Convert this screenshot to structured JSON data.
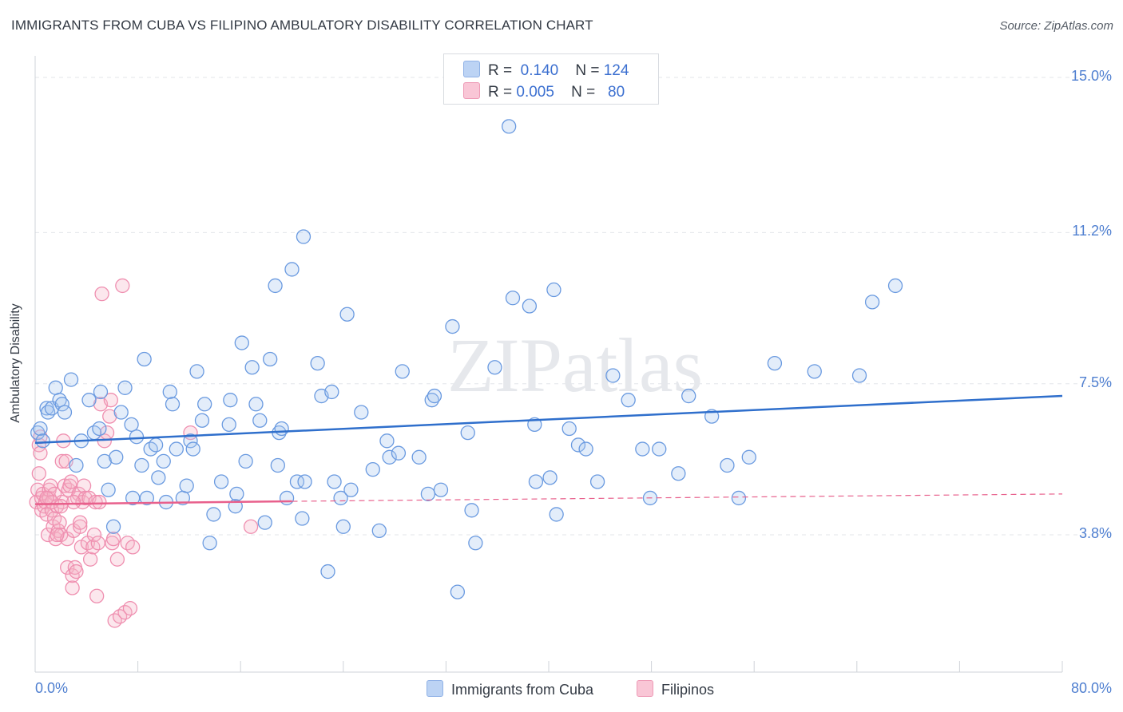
{
  "title": "IMMIGRANTS FROM CUBA VS FILIPINO AMBULATORY DISABILITY CORRELATION CHART",
  "source": "Source: ZipAtlas.com",
  "watermark": "ZIPatlas",
  "legend": {
    "rows": [
      {
        "r_label": "R =",
        "r_value": "0.140",
        "n_label": "N =",
        "n_value": "124"
      },
      {
        "r_label": "R =",
        "r_value": "0.005",
        "n_label": "N =",
        "n_value": "80"
      }
    ]
  },
  "bottom_legend": {
    "series1": "Immigrants from Cuba",
    "series2": "Filipinos"
  },
  "colors": {
    "blue": "#6a9ae0",
    "blue_line": "#2f6fcc",
    "pink": "#ef8fb0",
    "pink_line": "#e8608c",
    "grid": "#e3e6ea"
  },
  "chart_data": {
    "type": "scatter",
    "title": "IMMIGRANTS FROM CUBA VS FILIPINO AMBULATORY DISABILITY CORRELATION CHART",
    "xlabel": "",
    "ylabel": "Ambulatory Disability",
    "xlim": [
      0,
      80
    ],
    "ylim": [
      0,
      15.5
    ],
    "y_ticks": [
      3.8,
      7.5,
      11.2,
      15.0
    ],
    "y_tick_labels": [
      "3.8%",
      "7.5%",
      "11.2%",
      "15.0%"
    ],
    "x_tick_labels": [
      "0.0%",
      "80.0%"
    ],
    "series": [
      {
        "name": "Immigrants from Cuba",
        "r": 0.14,
        "n": 124,
        "trend": {
          "x": [
            0,
            80
          ],
          "y": [
            6.05,
            7.2
          ],
          "style": "solid"
        },
        "points": [
          [
            0.2,
            6.3
          ],
          [
            0.4,
            6.4
          ],
          [
            0.6,
            6.1
          ],
          [
            0.9,
            6.9
          ],
          [
            1.0,
            6.8
          ],
          [
            1.3,
            6.9
          ],
          [
            1.6,
            7.4
          ],
          [
            1.9,
            7.1
          ],
          [
            2.1,
            7.0
          ],
          [
            2.3,
            6.8
          ],
          [
            2.8,
            7.6
          ],
          [
            3.2,
            5.5
          ],
          [
            3.6,
            6.1
          ],
          [
            4.2,
            7.1
          ],
          [
            4.6,
            6.3
          ],
          [
            5.0,
            6.4
          ],
          [
            5.1,
            7.3
          ],
          [
            5.4,
            5.6
          ],
          [
            5.7,
            4.9
          ],
          [
            6.1,
            4.0
          ],
          [
            6.3,
            5.7
          ],
          [
            6.7,
            6.8
          ],
          [
            7.0,
            7.4
          ],
          [
            7.6,
            4.7
          ],
          [
            7.5,
            6.5
          ],
          [
            7.9,
            6.2
          ],
          [
            8.3,
            5.5
          ],
          [
            8.5,
            8.1
          ],
          [
            8.7,
            4.7
          ],
          [
            9.0,
            5.9
          ],
          [
            9.4,
            6.0
          ],
          [
            9.6,
            5.2
          ],
          [
            10.0,
            5.6
          ],
          [
            10.2,
            4.6
          ],
          [
            10.5,
            7.3
          ],
          [
            10.7,
            7.0
          ],
          [
            11.0,
            5.9
          ],
          [
            11.5,
            4.7
          ],
          [
            11.8,
            5.0
          ],
          [
            12.1,
            6.1
          ],
          [
            12.3,
            5.9
          ],
          [
            12.6,
            7.8
          ],
          [
            13.0,
            6.6
          ],
          [
            13.2,
            7.0
          ],
          [
            13.6,
            3.6
          ],
          [
            13.9,
            4.3
          ],
          [
            14.5,
            5.1
          ],
          [
            15.1,
            6.5
          ],
          [
            15.2,
            7.1
          ],
          [
            15.6,
            4.5
          ],
          [
            15.7,
            4.8
          ],
          [
            16.1,
            8.5
          ],
          [
            16.4,
            5.6
          ],
          [
            16.9,
            7.9
          ],
          [
            17.2,
            7.0
          ],
          [
            17.5,
            6.6
          ],
          [
            17.9,
            4.1
          ],
          [
            18.3,
            8.1
          ],
          [
            18.7,
            9.9
          ],
          [
            18.9,
            5.5
          ],
          [
            19.0,
            6.3
          ],
          [
            19.2,
            6.4
          ],
          [
            19.6,
            4.7
          ],
          [
            20.0,
            10.3
          ],
          [
            20.4,
            5.1
          ],
          [
            20.8,
            4.2
          ],
          [
            20.9,
            11.1
          ],
          [
            21.0,
            5.1
          ],
          [
            22.0,
            8.0
          ],
          [
            22.3,
            7.2
          ],
          [
            22.8,
            2.9
          ],
          [
            23.1,
            7.3
          ],
          [
            23.3,
            5.1
          ],
          [
            23.8,
            4.7
          ],
          [
            24.0,
            4.0
          ],
          [
            24.3,
            9.2
          ],
          [
            24.6,
            4.9
          ],
          [
            25.4,
            6.8
          ],
          [
            26.3,
            5.4
          ],
          [
            26.8,
            3.9
          ],
          [
            27.4,
            6.1
          ],
          [
            27.6,
            5.7
          ],
          [
            28.3,
            5.8
          ],
          [
            28.6,
            7.8
          ],
          [
            29.9,
            5.7
          ],
          [
            30.6,
            4.8
          ],
          [
            30.9,
            7.1
          ],
          [
            31.1,
            7.2
          ],
          [
            31.6,
            4.9
          ],
          [
            32.5,
            8.9
          ],
          [
            32.9,
            2.4
          ],
          [
            33.7,
            6.3
          ],
          [
            34.0,
            4.4
          ],
          [
            34.3,
            3.6
          ],
          [
            35.8,
            7.9
          ],
          [
            36.9,
            13.8
          ],
          [
            37.2,
            9.6
          ],
          [
            38.5,
            9.4
          ],
          [
            38.9,
            6.5
          ],
          [
            39.0,
            5.1
          ],
          [
            40.1,
            5.2
          ],
          [
            40.6,
            4.3
          ],
          [
            40.4,
            9.8
          ],
          [
            41.6,
            6.4
          ],
          [
            42.3,
            6.0
          ],
          [
            42.9,
            5.9
          ],
          [
            43.8,
            5.1
          ],
          [
            45.0,
            7.7
          ],
          [
            46.2,
            7.1
          ],
          [
            47.3,
            5.9
          ],
          [
            47.9,
            4.7
          ],
          [
            48.6,
            5.9
          ],
          [
            50.1,
            5.3
          ],
          [
            50.9,
            7.2
          ],
          [
            52.7,
            6.7
          ],
          [
            53.9,
            5.5
          ],
          [
            54.8,
            4.7
          ],
          [
            55.6,
            5.7
          ],
          [
            57.6,
            8.0
          ],
          [
            60.7,
            7.8
          ],
          [
            64.2,
            7.7
          ],
          [
            65.2,
            9.5
          ],
          [
            67.0,
            9.9
          ]
        ]
      },
      {
        "name": "Filipinos",
        "r": 0.005,
        "n": 80,
        "trend": {
          "x": [
            0,
            20
          ],
          "y": [
            4.55,
            4.62
          ],
          "style": "solid",
          "dashed_extension": {
            "x": [
              20,
              80
            ],
            "y": [
              4.62,
              4.8
            ]
          }
        },
        "points": [
          [
            0.1,
            4.6
          ],
          [
            0.2,
            4.9
          ],
          [
            0.3,
            5.3
          ],
          [
            0.3,
            6.0
          ],
          [
            0.4,
            6.2
          ],
          [
            0.4,
            5.8
          ],
          [
            0.5,
            4.7
          ],
          [
            0.5,
            4.4
          ],
          [
            0.6,
            4.8
          ],
          [
            0.7,
            4.5
          ],
          [
            0.8,
            4.6
          ],
          [
            0.9,
            4.3
          ],
          [
            1.0,
            3.8
          ],
          [
            1.1,
            4.7
          ],
          [
            1.1,
            4.9
          ],
          [
            1.2,
            5.0
          ],
          [
            1.3,
            4.4
          ],
          [
            1.4,
            4.0
          ],
          [
            1.5,
            4.2
          ],
          [
            1.5,
            4.8
          ],
          [
            1.6,
            3.7
          ],
          [
            1.7,
            4.5
          ],
          [
            1.8,
            3.9
          ],
          [
            1.9,
            4.1
          ],
          [
            2.0,
            3.8
          ],
          [
            2.1,
            4.6
          ],
          [
            2.1,
            5.6
          ],
          [
            2.2,
            6.1
          ],
          [
            2.3,
            5.0
          ],
          [
            2.5,
            3.7
          ],
          [
            2.5,
            3.0
          ],
          [
            2.6,
            4.9
          ],
          [
            2.7,
            5.0
          ],
          [
            2.8,
            5.1
          ],
          [
            2.9,
            2.8
          ],
          [
            2.9,
            2.5
          ],
          [
            3.0,
            3.9
          ],
          [
            3.1,
            3.0
          ],
          [
            3.2,
            2.9
          ],
          [
            3.3,
            4.7
          ],
          [
            3.4,
            4.8
          ],
          [
            3.5,
            4.0
          ],
          [
            3.5,
            4.1
          ],
          [
            3.6,
            3.5
          ],
          [
            3.7,
            4.6
          ],
          [
            3.8,
            5.0
          ],
          [
            3.9,
            4.7
          ],
          [
            4.1,
            3.6
          ],
          [
            4.2,
            4.7
          ],
          [
            4.3,
            3.2
          ],
          [
            4.5,
            3.5
          ],
          [
            4.6,
            3.8
          ],
          [
            4.7,
            4.6
          ],
          [
            4.8,
            2.3
          ],
          [
            4.9,
            3.6
          ],
          [
            5.0,
            4.6
          ],
          [
            5.1,
            7.0
          ],
          [
            5.2,
            9.7
          ],
          [
            5.4,
            6.1
          ],
          [
            5.6,
            6.3
          ],
          [
            5.8,
            6.7
          ],
          [
            5.9,
            7.1
          ],
          [
            6.0,
            3.6
          ],
          [
            6.1,
            3.7
          ],
          [
            6.2,
            1.7
          ],
          [
            6.4,
            3.2
          ],
          [
            6.6,
            1.8
          ],
          [
            6.8,
            9.9
          ],
          [
            7.0,
            1.9
          ],
          [
            7.2,
            3.6
          ],
          [
            7.4,
            2.0
          ],
          [
            7.6,
            3.5
          ],
          [
            12.1,
            6.3
          ],
          [
            16.8,
            4.0
          ],
          [
            2.4,
            5.6
          ],
          [
            1.3,
            4.6
          ],
          [
            0.9,
            4.7
          ],
          [
            2.0,
            4.5
          ],
          [
            1.7,
            3.8
          ],
          [
            3.0,
            4.6
          ]
        ]
      }
    ]
  }
}
